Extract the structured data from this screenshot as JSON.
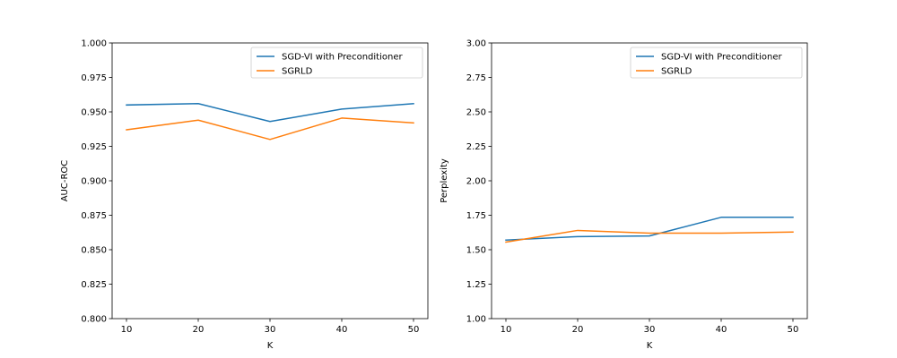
{
  "chart_data": [
    {
      "type": "line",
      "xlabel": "K",
      "ylabel": "AUC-ROC",
      "x": [
        10,
        20,
        30,
        40,
        50
      ],
      "xticks": [
        "10",
        "20",
        "30",
        "40",
        "50"
      ],
      "xlim": [
        8,
        52
      ],
      "ylim": [
        0.8,
        1.0
      ],
      "yticks": [
        "0.800",
        "0.825",
        "0.850",
        "0.875",
        "0.900",
        "0.925",
        "0.950",
        "0.975",
        "1.000"
      ],
      "grid": false,
      "legend": "top-right",
      "series": [
        {
          "name": "SGD-VI with Preconditioner",
          "color": "#1f77b4",
          "values": [
            0.955,
            0.956,
            0.943,
            0.952,
            0.956
          ]
        },
        {
          "name": "SGRLD",
          "color": "#ff7f0e",
          "values": [
            0.937,
            0.944,
            0.93,
            0.9455,
            0.942
          ]
        }
      ]
    },
    {
      "type": "line",
      "xlabel": "K",
      "ylabel": "Perplexity",
      "x": [
        10,
        20,
        30,
        40,
        50
      ],
      "xticks": [
        "10",
        "20",
        "30",
        "40",
        "50"
      ],
      "xlim": [
        8,
        52
      ],
      "ylim": [
        1.0,
        3.0
      ],
      "yticks": [
        "1.00",
        "1.25",
        "1.50",
        "1.75",
        "2.00",
        "2.25",
        "2.50",
        "2.75",
        "3.00"
      ],
      "grid": false,
      "legend": "top-right",
      "series": [
        {
          "name": "SGD-VI with Preconditioner",
          "color": "#1f77b4",
          "values": [
            1.57,
            1.595,
            1.6,
            1.735,
            1.735
          ]
        },
        {
          "name": "SGRLD",
          "color": "#ff7f0e",
          "values": [
            1.555,
            1.64,
            1.62,
            1.62,
            1.628
          ]
        }
      ]
    }
  ]
}
